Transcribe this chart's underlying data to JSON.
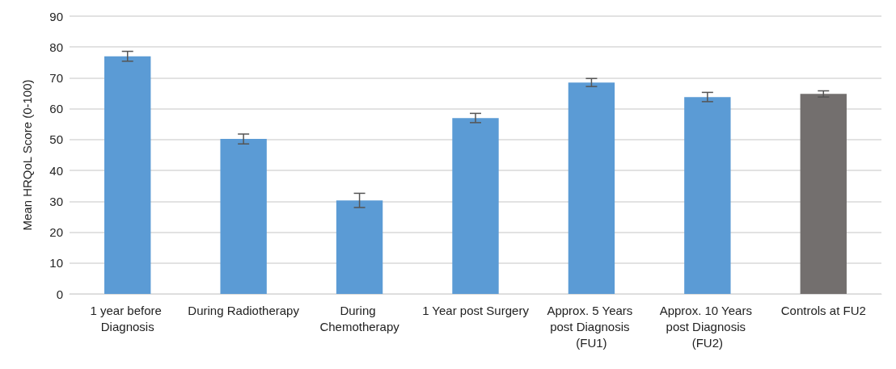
{
  "chart_data": {
    "type": "bar",
    "ylabel": "Mean HRQoL Score (0-100)",
    "categories": [
      "1 year before Diagnosis",
      "During Radiotherapy",
      "During Chemotherapy",
      "1 Year post Surgery",
      "Approx. 5 Years post Diagnosis (FU1)",
      "Approx. 10 Years post Diagnosis (FU2)",
      "Controls at FU2"
    ],
    "values": [
      77,
      50.2,
      30.3,
      57,
      68.5,
      63.8,
      64.8
    ],
    "errors": [
      1.6,
      1.6,
      2.3,
      1.5,
      1.3,
      1.5,
      1
    ],
    "colors": [
      "#5b9bd5",
      "#5b9bd5",
      "#5b9bd5",
      "#5b9bd5",
      "#5b9bd5",
      "#5b9bd5",
      "#736f6e"
    ],
    "ylim": [
      0,
      90
    ],
    "yticks": [
      0,
      10,
      20,
      30,
      40,
      50,
      60,
      70,
      80,
      90
    ],
    "grid": "y"
  }
}
